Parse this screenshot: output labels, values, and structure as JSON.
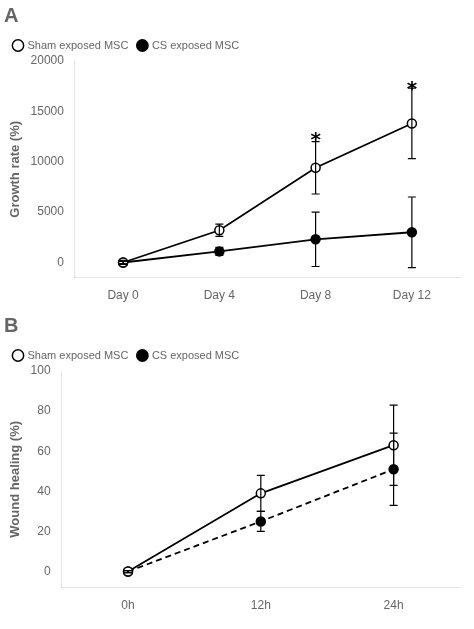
{
  "chart_data": [
    {
      "type": "line",
      "title": "A",
      "y_label": "Growth rate (%)",
      "categories": [
        "Day 0",
        "Day 4",
        "Day 8",
        "Day 12"
      ],
      "series": [
        {
          "name": "Sham exposed MSC",
          "color": "#000000",
          "marker": "hollow circle",
          "line_style": "solid",
          "values": [
            0,
            3200,
            9400,
            13800
          ],
          "errors": [
            200,
            600,
            2600,
            3500
          ]
        },
        {
          "name": "CS exposed MSC",
          "color": "#000000",
          "marker": "filled circle",
          "line_style": "solid",
          "values": [
            0,
            1100,
            2300,
            3000
          ],
          "errors": [
            100,
            400,
            2700,
            3500
          ]
        }
      ],
      "ylim": [
        -1500,
        20000
      ],
      "yticks": [
        0,
        5000,
        10000,
        15000,
        20000
      ],
      "grid": false,
      "legend": "upper left",
      "annotations": [
        {
          "text": "*",
          "x": "Day 8",
          "y": 12500
        },
        {
          "text": "*",
          "x": "Day 12",
          "y": 17500
        }
      ]
    },
    {
      "type": "line",
      "title": "B",
      "y_label": "Wound healing (%)",
      "categories": [
        "0h",
        "12h",
        "24h"
      ],
      "series": [
        {
          "name": "Sham exposed MSC",
          "color": "#000000",
          "marker": "hollow circle",
          "line_style": "solid",
          "values": [
            0,
            39,
            63
          ],
          "errors": [
            0.5,
            9,
            20
          ]
        },
        {
          "name": "CS exposed MSC",
          "color": "#000000",
          "marker": "filled circle",
          "line_style": "dashed",
          "values": [
            0,
            25,
            51
          ],
          "errors": [
            0.5,
            5,
            18
          ]
        }
      ],
      "ylim": [
        -8,
        100
      ],
      "yticks": [
        0,
        20,
        40,
        60,
        80,
        100
      ],
      "grid": false,
      "legend": "upper left"
    }
  ]
}
